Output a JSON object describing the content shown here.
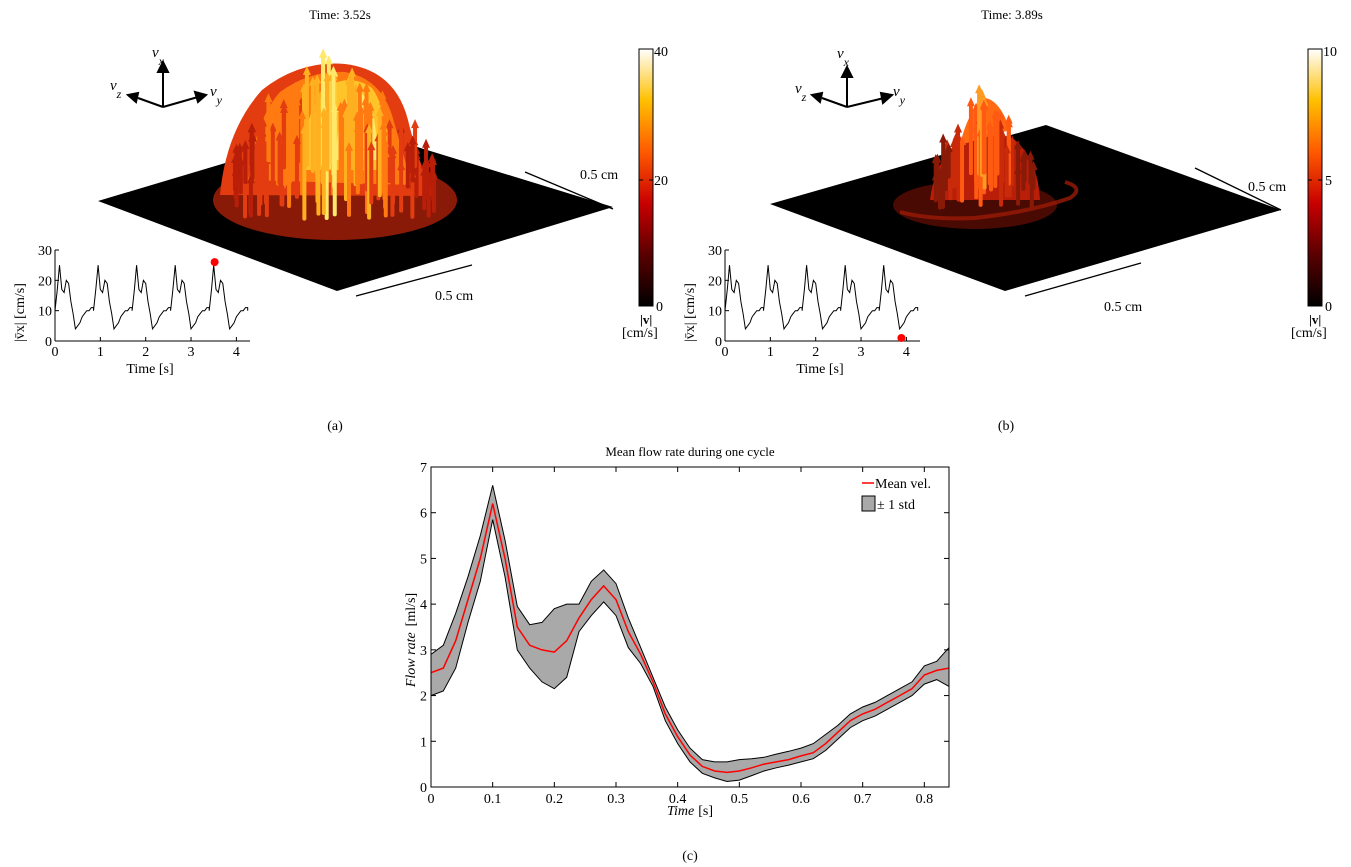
{
  "panel_a": {
    "title": "Time: 3.52s",
    "caption": "(a)",
    "scale_right": "0.5 cm",
    "scale_bottom": "0.5 cm",
    "axes": {
      "vx": "v",
      "vx_sub": "x",
      "vy": "v",
      "vy_sub": "y",
      "vz": "v",
      "vz_sub": "z"
    },
    "colorbar": {
      "max": "40",
      "mid": "20",
      "min": "0",
      "label": "|v|",
      "unit": "[cm/s]",
      "colors": [
        "#000000",
        "#5a0000",
        "#c80000",
        "#ff5a00",
        "#ffc000",
        "#ffffff"
      ]
    },
    "inset": {
      "ylabel": "|v̄x| [cm/s]",
      "xlabel": "Time [s]",
      "xticks": [
        "0",
        "1",
        "2",
        "3",
        "4"
      ],
      "yticks": [
        "0",
        "10",
        "20",
        "30"
      ],
      "marker": {
        "t": 3.52,
        "v": 26
      }
    }
  },
  "panel_b": {
    "title": "Time: 3.89s",
    "caption": "(b)",
    "scale_right": "0.5 cm",
    "scale_bottom": "0.5 cm",
    "axes": {
      "vx": "v",
      "vx_sub": "x",
      "vy": "v",
      "vy_sub": "y",
      "vz": "v",
      "vz_sub": "z"
    },
    "colorbar": {
      "max": "10",
      "mid": "5",
      "min": "0",
      "label": "|v|",
      "unit": "[cm/s]",
      "colors": [
        "#000000",
        "#5a0000",
        "#c80000",
        "#ff5a00",
        "#ffc000",
        "#ffffff"
      ]
    },
    "inset": {
      "ylabel": "|v̄x| [cm/s]",
      "xlabel": "Time [s]",
      "xticks": [
        "0",
        "1",
        "2",
        "3",
        "4"
      ],
      "yticks": [
        "0",
        "10",
        "20",
        "30"
      ],
      "marker": {
        "t": 3.89,
        "v": 1
      }
    }
  },
  "inset_series": {
    "t": [
      0.0,
      0.05,
      0.1,
      0.15,
      0.2,
      0.25,
      0.3,
      0.35,
      0.4,
      0.45,
      0.5,
      0.55,
      0.6,
      0.65,
      0.7,
      0.75,
      0.8,
      0.85
    ],
    "v": [
      10,
      17,
      25,
      17,
      16,
      20,
      19,
      13,
      9,
      4,
      5,
      6,
      8,
      9,
      10,
      10,
      11,
      11
    ],
    "period": 0.85,
    "xlim": [
      0,
      4.3
    ],
    "ylim": [
      0,
      30
    ]
  },
  "chart_data": {
    "type": "line",
    "title": "Mean flow rate during one cycle",
    "xlabel": "Time",
    "xunit": "[s]",
    "ylabel": "Flow rate",
    "yunit": "[ml/s]",
    "caption": "(c)",
    "xlim": [
      0,
      0.84
    ],
    "ylim": [
      0,
      7
    ],
    "xticks": [
      "0",
      "0.1",
      "0.2",
      "0.3",
      "0.4",
      "0.5",
      "0.6",
      "0.7",
      "0.8"
    ],
    "yticks": [
      "0",
      "1",
      "2",
      "3",
      "4",
      "5",
      "6",
      "7"
    ],
    "legend": {
      "position": "top-right",
      "mean_label": "Mean vel.",
      "std_label": "± 1 std"
    },
    "line_color": "#ff0000",
    "band_color": "#a9a9a9",
    "x": [
      0,
      0.02,
      0.04,
      0.06,
      0.08,
      0.1,
      0.12,
      0.14,
      0.16,
      0.18,
      0.2,
      0.22,
      0.24,
      0.26,
      0.28,
      0.3,
      0.32,
      0.34,
      0.36,
      0.38,
      0.4,
      0.42,
      0.44,
      0.46,
      0.48,
      0.5,
      0.52,
      0.54,
      0.56,
      0.58,
      0.6,
      0.62,
      0.64,
      0.66,
      0.68,
      0.7,
      0.72,
      0.74,
      0.76,
      0.78,
      0.8,
      0.82,
      0.84
    ],
    "series": [
      {
        "name": "Mean vel.",
        "values": [
          2.5,
          2.6,
          3.2,
          4.1,
          5.0,
          6.2,
          5.0,
          3.5,
          3.1,
          3.0,
          2.95,
          3.2,
          3.7,
          4.1,
          4.4,
          4.1,
          3.4,
          2.9,
          2.3,
          1.6,
          1.1,
          0.7,
          0.45,
          0.35,
          0.32,
          0.35,
          0.42,
          0.5,
          0.55,
          0.6,
          0.68,
          0.75,
          0.95,
          1.2,
          1.45,
          1.6,
          1.7,
          1.85,
          2.0,
          2.15,
          2.45,
          2.55,
          2.6
        ]
      }
    ],
    "band_upper": [
      2.9,
      3.1,
      3.8,
      4.6,
      5.5,
      6.6,
      5.4,
      3.95,
      3.55,
      3.6,
      3.9,
      4.0,
      4.0,
      4.5,
      4.75,
      4.45,
      3.7,
      3.05,
      2.4,
      1.75,
      1.25,
      0.85,
      0.6,
      0.55,
      0.55,
      0.6,
      0.62,
      0.65,
      0.72,
      0.78,
      0.85,
      0.95,
      1.15,
      1.35,
      1.6,
      1.75,
      1.85,
      2.0,
      2.15,
      2.3,
      2.65,
      2.75,
      3.05
    ],
    "band_lower": [
      2.0,
      2.1,
      2.6,
      3.6,
      4.5,
      5.85,
      4.6,
      3.0,
      2.6,
      2.3,
      2.15,
      2.4,
      3.4,
      3.75,
      4.05,
      3.75,
      3.05,
      2.7,
      2.2,
      1.45,
      0.95,
      0.55,
      0.3,
      0.2,
      0.12,
      0.15,
      0.25,
      0.35,
      0.42,
      0.48,
      0.55,
      0.62,
      0.8,
      1.05,
      1.3,
      1.45,
      1.55,
      1.7,
      1.85,
      2.0,
      2.25,
      2.35,
      2.2
    ]
  }
}
